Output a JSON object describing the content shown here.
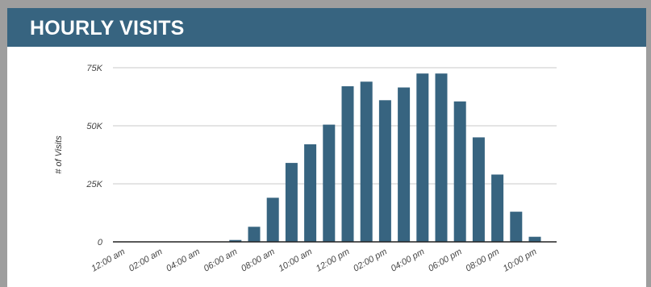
{
  "widget": {
    "title": "HOURLY VISITS"
  },
  "colors": {
    "header": "#376480",
    "bar": "#376480",
    "grid": "#c8c8c8",
    "axis": "#222222",
    "frame": "#9e9e9e"
  },
  "chart_data": {
    "type": "bar",
    "title": "",
    "xlabel": "",
    "ylabel": "# of Visits",
    "ylim": [
      0,
      75000
    ],
    "yticks": [
      0,
      25000,
      50000,
      75000
    ],
    "ytick_labels": [
      "0",
      "25K",
      "50K",
      "75K"
    ],
    "grid": true,
    "legend": "none",
    "categories": [
      "12:00 am",
      "01:00 am",
      "02:00 am",
      "03:00 am",
      "04:00 am",
      "05:00 am",
      "06:00 am",
      "07:00 am",
      "08:00 am",
      "09:00 am",
      "10:00 am",
      "11:00 am",
      "12:00 pm",
      "01:00 pm",
      "02:00 pm",
      "03:00 pm",
      "04:00 pm",
      "05:00 pm",
      "06:00 pm",
      "07:00 pm",
      "08:00 pm",
      "09:00 pm",
      "10:00 pm",
      "11:00 pm"
    ],
    "xtick_labels": [
      "12:00 am",
      "02:00 am",
      "04:00 am",
      "06:00 am",
      "08:00 am",
      "10:00 am",
      "12:00 pm",
      "02:00 pm",
      "04:00 pm",
      "06:00 pm",
      "08:00 pm",
      "10:00 pm"
    ],
    "values": [
      0,
      0,
      0,
      0,
      0,
      0,
      800,
      6500,
      19000,
      34000,
      42000,
      50500,
      67000,
      69000,
      61000,
      66500,
      72500,
      72500,
      60500,
      45000,
      29000,
      13000,
      2200,
      0
    ]
  }
}
